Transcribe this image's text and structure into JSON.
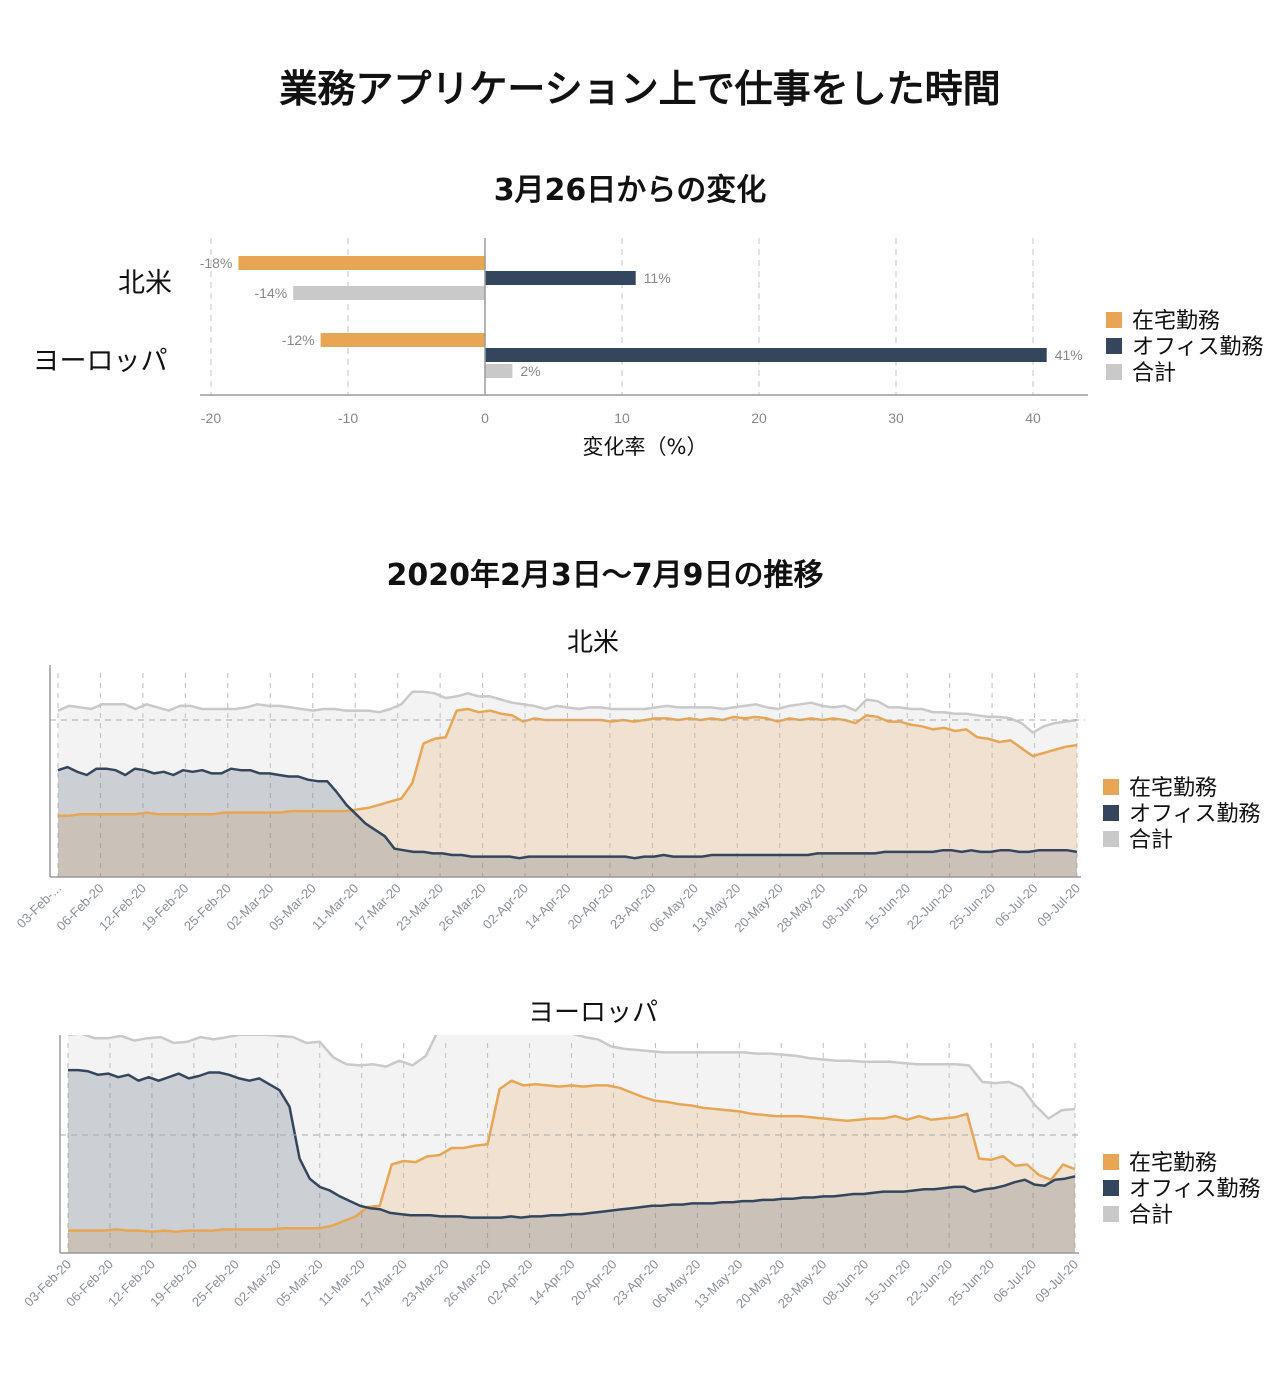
{
  "main_title": "業務アプリケーション上で仕事をした時間",
  "bar_section_title": "3月26日からの変化",
  "trend_section_title": "2020年2月3日～7月9日の推移",
  "colors": {
    "home": "#e8a655",
    "office": "#34465e",
    "total": "#c9c9c9"
  },
  "legend": [
    "在宅勤務",
    "オフィス勤務",
    "合計"
  ],
  "chart_data": [
    {
      "type": "bar",
      "orientation": "horizontal",
      "title": "3月26日からの変化",
      "categories": [
        "北米",
        "ヨーロッパ"
      ],
      "series": [
        {
          "name": "在宅勤務",
          "values": [
            -18,
            -12
          ],
          "labels": [
            "-18%",
            "-12%"
          ]
        },
        {
          "name": "オフィス勤務",
          "values": [
            11,
            41
          ],
          "labels": [
            "11%",
            "41%"
          ]
        },
        {
          "name": "合計",
          "values": [
            -14,
            2
          ],
          "labels": [
            "-14%",
            "2%"
          ]
        }
      ],
      "xlabel": "変化率（%）",
      "xlim": [
        -20,
        43
      ],
      "xticks": [
        "-20",
        "-10",
        "0",
        "10",
        "20",
        "30",
        "40"
      ],
      "grid": true,
      "legend_position": "right"
    },
    {
      "type": "area",
      "title": "北米",
      "x_ticks": [
        "03-Feb-...",
        "06-Feb-20",
        "12-Feb-20",
        "19-Feb-20",
        "25-Feb-20",
        "02-Mar-20",
        "05-Mar-20",
        "11-Mar-20",
        "17-Mar-20",
        "23-Mar-20",
        "26-Mar-20",
        "02-Apr-20",
        "14-Apr-20",
        "20-Apr-20",
        "23-Apr-20",
        "06-May-20",
        "13-May-20",
        "20-May-20",
        "28-May-20",
        "08-Jun-20",
        "15-Jun-20",
        "22-Jun-20",
        "25-Jun-20",
        "06-Jul-20",
        "09-Jul-20"
      ],
      "y_relative_to_reference": true,
      "reference_line": 100,
      "series": [
        {
          "name": "在宅勤務",
          "values": [
            39,
            39,
            40,
            40,
            40,
            40,
            40,
            40,
            41,
            40,
            40,
            40,
            40,
            40,
            40,
            41,
            41,
            41,
            41,
            41,
            41,
            42,
            42,
            42,
            42,
            42,
            42,
            43,
            44,
            46,
            48,
            50,
            60,
            85,
            88,
            89,
            106,
            107,
            105,
            106,
            104,
            103,
            99,
            101,
            100,
            100,
            100,
            100,
            100,
            100,
            99,
            100,
            99,
            100,
            101,
            101,
            100,
            101,
            100,
            101,
            100,
            102,
            101,
            102,
            101,
            99,
            101,
            100,
            101,
            100,
            101,
            100,
            98,
            103,
            102,
            99,
            99,
            97,
            96,
            94,
            95,
            93,
            94,
            89,
            88,
            86,
            87,
            82,
            77,
            79,
            81,
            83,
            84
          ]
        },
        {
          "name": "オフィス勤務",
          "values": [
            68,
            70,
            67,
            65,
            69,
            69,
            68,
            65,
            69,
            68,
            66,
            67,
            65,
            68,
            67,
            68,
            66,
            66,
            69,
            68,
            68,
            66,
            66,
            65,
            64,
            64,
            62,
            61,
            61,
            54,
            46,
            40,
            34,
            30,
            26,
            18,
            17,
            16,
            16,
            15,
            15,
            14,
            14,
            13,
            13,
            13,
            13,
            13,
            12,
            13,
            13,
            13,
            13,
            13,
            13,
            13,
            13,
            13,
            13,
            13,
            12,
            13,
            13,
            14,
            13,
            13,
            13,
            13,
            14,
            14,
            14,
            14,
            14,
            14,
            14,
            14,
            14,
            14,
            14,
            15,
            15,
            15,
            15,
            15,
            15,
            15,
            16,
            16,
            16,
            16,
            16,
            16,
            17,
            17,
            16,
            17,
            16,
            16,
            17,
            17,
            16,
            16,
            17,
            17,
            17,
            17,
            16
          ]
        },
        {
          "name": "合計",
          "values": [
            106,
            109,
            108,
            107,
            110,
            110,
            110,
            107,
            110,
            108,
            106,
            109,
            109,
            107,
            107,
            107,
            107,
            108,
            110,
            109,
            109,
            108,
            107,
            106,
            107,
            107,
            106,
            106,
            106,
            105,
            107,
            110,
            118,
            118,
            117,
            114,
            115,
            117,
            115,
            115,
            113,
            111,
            110,
            109,
            107,
            109,
            108,
            107,
            108,
            108,
            107,
            107,
            107,
            107,
            108,
            109,
            108,
            108,
            108,
            108,
            107,
            108,
            109,
            110,
            108,
            107,
            109,
            110,
            111,
            109,
            108,
            109,
            106,
            113,
            112,
            108,
            108,
            107,
            107,
            105,
            105,
            104,
            104,
            103,
            102,
            102,
            101,
            98,
            92,
            96,
            98,
            99,
            100
          ]
        }
      ],
      "legend_position": "right"
    },
    {
      "type": "area",
      "title": "ヨーロッパ",
      "x_ticks": [
        "03-Feb-20",
        "06-Feb-20",
        "12-Feb-20",
        "19-Feb-20",
        "25-Feb-20",
        "02-Mar-20",
        "05-Mar-20",
        "11-Mar-20",
        "17-Mar-20",
        "23-Mar-20",
        "26-Mar-20",
        "02-Apr-20",
        "14-Apr-20",
        "20-Apr-20",
        "23-Apr-20",
        "06-May-20",
        "13-May-20",
        "20-May-20",
        "28-May-20",
        "08-Jun-20",
        "15-Jun-20",
        "22-Jun-20",
        "25-Jun-20",
        "06-Jul-20",
        "09-Jul-20"
      ],
      "y_relative_to_reference": true,
      "reference_line": 100,
      "series": [
        {
          "name": "在宅勤務",
          "values": [
            19,
            19,
            19,
            19,
            20,
            19,
            19,
            18,
            19,
            18,
            19,
            19,
            19,
            20,
            20,
            20,
            20,
            20,
            21,
            21,
            21,
            21,
            23,
            27,
            31,
            39,
            40,
            75,
            78,
            77,
            82,
            83,
            89,
            89,
            91,
            92,
            139,
            146,
            142,
            143,
            142,
            141,
            142,
            141,
            142,
            142,
            140,
            136,
            132,
            129,
            128,
            126,
            125,
            123,
            122,
            121,
            120,
            118,
            117,
            116,
            116,
            116,
            115,
            114,
            113,
            112,
            113,
            114,
            114,
            116,
            113,
            116,
            113,
            114,
            115,
            118,
            80,
            79,
            82,
            74,
            75,
            66,
            62,
            75,
            71
          ]
        },
        {
          "name": "オフィス勤務",
          "values": [
            155,
            155,
            154,
            151,
            152,
            149,
            151,
            146,
            149,
            146,
            149,
            152,
            148,
            150,
            153,
            153,
            151,
            148,
            146,
            148,
            143,
            138,
            124,
            80,
            63,
            56,
            53,
            48,
            44,
            40,
            38,
            37,
            34,
            33,
            32,
            32,
            32,
            31,
            31,
            31,
            30,
            30,
            30,
            30,
            31,
            30,
            31,
            31,
            32,
            32,
            33,
            33,
            34,
            35,
            36,
            37,
            38,
            39,
            40,
            40,
            41,
            41,
            42,
            42,
            42,
            43,
            43,
            44,
            44,
            45,
            45,
            46,
            46,
            47,
            47,
            48,
            48,
            49,
            50,
            50,
            51,
            52,
            52,
            52,
            53,
            54,
            54,
            55,
            56,
            56,
            52,
            54,
            55,
            57,
            60,
            62,
            58,
            57,
            62,
            63,
            65
          ]
        },
        {
          "name": "合計",
          "values": [
            185,
            186,
            182,
            182,
            184,
            180,
            182,
            183,
            178,
            179,
            183,
            181,
            183,
            185,
            185,
            185,
            184,
            183,
            178,
            179,
            166,
            160,
            159,
            160,
            158,
            163,
            159,
            167,
            190,
            192,
            191,
            190,
            192,
            189,
            189,
            192,
            190,
            188,
            186,
            183,
            181,
            175,
            173,
            172,
            171,
            170,
            170,
            170,
            170,
            170,
            170,
            170,
            169,
            169,
            168,
            167,
            165,
            164,
            163,
            163,
            162,
            162,
            162,
            161,
            160,
            160,
            160,
            160,
            159,
            145,
            144,
            145,
            140,
            125,
            114,
            121,
            122
          ]
        }
      ],
      "legend_position": "right"
    }
  ]
}
